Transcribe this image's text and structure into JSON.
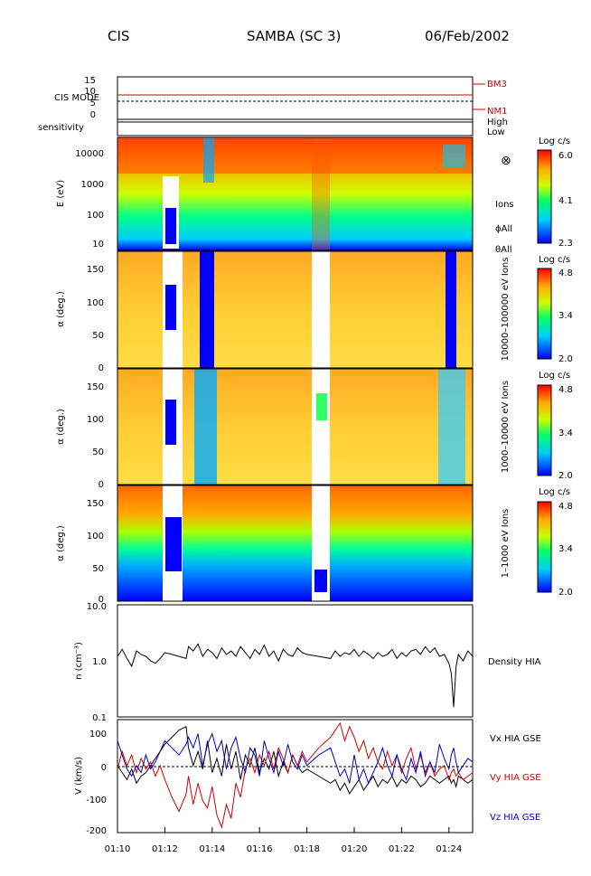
{
  "header": {
    "instrument": "CIS",
    "spacecraft": "SAMBA (SC 3)",
    "date": "06/Feb/2002"
  },
  "colors": {
    "red": "#d00000",
    "blue": "#0000c0",
    "black": "#000000"
  },
  "time_axis": {
    "tick_labels": [
      "01:10",
      "01:12",
      "01:14",
      "01:16",
      "01:18",
      "01:20",
      "01:22",
      "01:24"
    ],
    "start_min": 70,
    "end_min": 85
  },
  "cis_mode": {
    "ylabel": "CIS MODE",
    "ticks": [
      "15",
      "10",
      "5",
      "0"
    ],
    "right_labels": [
      "BM3",
      "NM1"
    ],
    "lines": [
      {
        "y": 8.5,
        "style": "red"
      },
      {
        "y": 5,
        "style": "dashed"
      },
      {
        "y": 13,
        "style": "red-right"
      }
    ]
  },
  "sensitivity": {
    "label": "sensitivity",
    "levels": [
      "High",
      "Low"
    ]
  },
  "panels": [
    {
      "ylabel": "E (eV)",
      "yticks": [
        "10000",
        "1000",
        "100",
        "10"
      ],
      "side_labels": [
        "Ions",
        "ϕAll",
        "θAll"
      ],
      "side_symbol": "⊗",
      "colorbar": {
        "title": "Log c/s",
        "max": "6.0",
        "mid": "4.1",
        "min": "2.3"
      }
    },
    {
      "ylabel": "α (deg.)",
      "yticks": [
        "150",
        "100",
        "50",
        "0"
      ],
      "side_label": "10000–100000 eV Ions",
      "colorbar": {
        "title": "Log c/s",
        "max": "4.8",
        "mid": "3.4",
        "min": "2.0"
      }
    },
    {
      "ylabel": "α (deg.)",
      "yticks": [
        "150",
        "100",
        "50",
        "0"
      ],
      "side_label": "1000–10000 eV Ions",
      "colorbar": {
        "title": "Log c/s",
        "max": "4.8",
        "mid": "3.4",
        "min": "2.0"
      }
    },
    {
      "ylabel": "α (deg.)",
      "yticks": [
        "150",
        "100",
        "50",
        "0"
      ],
      "side_label": "1–1000 eV Ions",
      "colorbar": {
        "title": "Log c/s",
        "max": "4.8",
        "mid": "3.4",
        "min": "2.0"
      }
    }
  ],
  "chart_data": [
    {
      "type": "line",
      "ylabel": "n (cm⁻³)",
      "series_label": "Density HIA",
      "yscale": "log",
      "ylim": [
        0.1,
        10.0
      ],
      "yticks": [
        "10.0",
        "1.0",
        "0.1"
      ],
      "x_minutes": [
        70.0,
        70.2,
        70.4,
        70.6,
        70.8,
        71.0,
        71.2,
        71.4,
        71.6,
        71.8,
        72.0,
        72.3,
        72.6,
        72.9,
        73.0,
        73.2,
        73.4,
        73.6,
        73.8,
        74.0,
        74.2,
        74.4,
        74.6,
        74.8,
        75.0,
        75.2,
        75.4,
        75.6,
        75.8,
        76.0,
        76.2,
        76.4,
        76.6,
        76.8,
        77.0,
        77.2,
        77.4,
        77.6,
        77.8,
        78.0,
        78.5,
        79.0,
        79.2,
        79.4,
        79.6,
        79.8,
        80.0,
        80.2,
        80.4,
        80.6,
        80.8,
        81.0,
        81.2,
        81.4,
        81.6,
        81.8,
        82.0,
        82.2,
        82.4,
        82.6,
        82.8,
        83.0,
        83.2,
        83.4,
        83.6,
        83.8,
        84.0,
        84.1,
        84.2,
        84.3,
        84.4,
        84.6,
        84.8,
        85.0
      ],
      "density": [
        1.2,
        1.6,
        1.1,
        0.8,
        1.5,
        1.3,
        1.2,
        1.0,
        0.9,
        1.1,
        1.4,
        1.3,
        1.2,
        1.1,
        1.8,
        1.5,
        2.0,
        1.2,
        1.6,
        1.4,
        1.1,
        1.7,
        1.3,
        1.5,
        1.2,
        1.8,
        1.4,
        1.1,
        1.6,
        1.3,
        1.9,
        1.2,
        1.5,
        1.0,
        1.6,
        1.3,
        1.2,
        1.7,
        1.4,
        1.3,
        1.2,
        1.1,
        1.5,
        1.2,
        1.4,
        1.3,
        1.6,
        1.2,
        1.5,
        1.3,
        1.1,
        1.4,
        1.2,
        1.3,
        1.6,
        1.1,
        1.4,
        1.2,
        1.5,
        1.6,
        1.3,
        1.8,
        1.4,
        1.7,
        1.2,
        1.3,
        0.9,
        0.6,
        0.15,
        0.8,
        1.3,
        1.0,
        1.5,
        1.2
      ]
    },
    {
      "type": "line",
      "ylabel": "V (km/s)",
      "ylim": [
        -200,
        120
      ],
      "yticks": [
        "100",
        "0",
        "-100",
        "-200"
      ],
      "x_minutes": [
        70.0,
        70.2,
        70.4,
        70.6,
        70.8,
        71.0,
        71.2,
        71.4,
        71.6,
        71.8,
        72.0,
        72.3,
        72.6,
        72.9,
        73.0,
        73.2,
        73.4,
        73.6,
        73.8,
        74.0,
        74.2,
        74.4,
        74.6,
        74.8,
        75.0,
        75.2,
        75.4,
        75.6,
        75.8,
        76.0,
        76.2,
        76.4,
        76.6,
        76.8,
        77.0,
        77.2,
        77.4,
        77.6,
        77.8,
        78.0,
        78.5,
        79.0,
        79.2,
        79.4,
        79.6,
        79.8,
        80.0,
        80.2,
        80.4,
        80.6,
        80.8,
        81.0,
        81.2,
        81.4,
        81.6,
        81.8,
        82.0,
        82.2,
        82.4,
        82.6,
        82.8,
        83.0,
        83.2,
        83.4,
        83.6,
        83.8,
        84.0,
        84.1,
        84.2,
        84.3,
        84.4,
        84.6,
        84.8,
        85.0
      ],
      "series": [
        {
          "name": "Vx HIA GSE",
          "color": "black",
          "values": [
            -10,
            -30,
            -50,
            -20,
            -60,
            -40,
            -30,
            -10,
            10,
            30,
            50,
            70,
            90,
            100,
            40,
            -10,
            30,
            -20,
            60,
            -30,
            10,
            -40,
            50,
            -20,
            30,
            -50,
            20,
            -10,
            40,
            -30,
            10,
            -20,
            30,
            -40,
            0,
            -30,
            20,
            -10,
            -30,
            -20,
            -40,
            -60,
            -50,
            -80,
            -60,
            -90,
            -70,
            -50,
            -80,
            -60,
            -40,
            -70,
            -50,
            -60,
            -40,
            -70,
            -50,
            -60,
            -40,
            -50,
            -70,
            -60,
            -40,
            -50,
            -60,
            -50,
            -40,
            -60,
            -50,
            -70,
            -40,
            -50,
            -60,
            -50
          ]
        },
        {
          "name": "Vy HIA GSE",
          "color": "red",
          "values": [
            -20,
            30,
            -10,
            20,
            -30,
            10,
            -20,
            0,
            -40,
            -10,
            -50,
            -100,
            -140,
            -90,
            -40,
            -120,
            -60,
            -110,
            -130,
            -70,
            -150,
            -185,
            -120,
            -160,
            -60,
            -100,
            -20,
            10,
            -30,
            20,
            -10,
            30,
            -20,
            40,
            10,
            -30,
            20,
            -10,
            30,
            0,
            40,
            70,
            90,
            110,
            60,
            100,
            70,
            30,
            60,
            10,
            40,
            0,
            -20,
            30,
            -10,
            20,
            -30,
            10,
            40,
            -20,
            20,
            -30,
            0,
            -40,
            -20,
            -10,
            -50,
            -30,
            -20,
            -40,
            -30,
            -50,
            -40,
            -30
          ]
        },
        {
          "name": "Vz HIA GSE",
          "color": "blue",
          "values": [
            60,
            20,
            -20,
            -40,
            -10,
            -30,
            20,
            -20,
            0,
            30,
            60,
            40,
            20,
            50,
            70,
            40,
            80,
            -10,
            50,
            80,
            30,
            60,
            -20,
            40,
            70,
            10,
            -30,
            40,
            20,
            -40,
            60,
            10,
            -30,
            30,
            -10,
            50,
            0,
            -20,
            20,
            -10,
            20,
            40,
            0,
            -40,
            -20,
            -60,
            20,
            -50,
            -20,
            -60,
            -30,
            0,
            40,
            -10,
            -40,
            20,
            -20,
            -50,
            10,
            -30,
            30,
            -40,
            0,
            -30,
            50,
            10,
            -20,
            20,
            40,
            0,
            -30,
            -10,
            10,
            0
          ]
        }
      ]
    }
  ]
}
